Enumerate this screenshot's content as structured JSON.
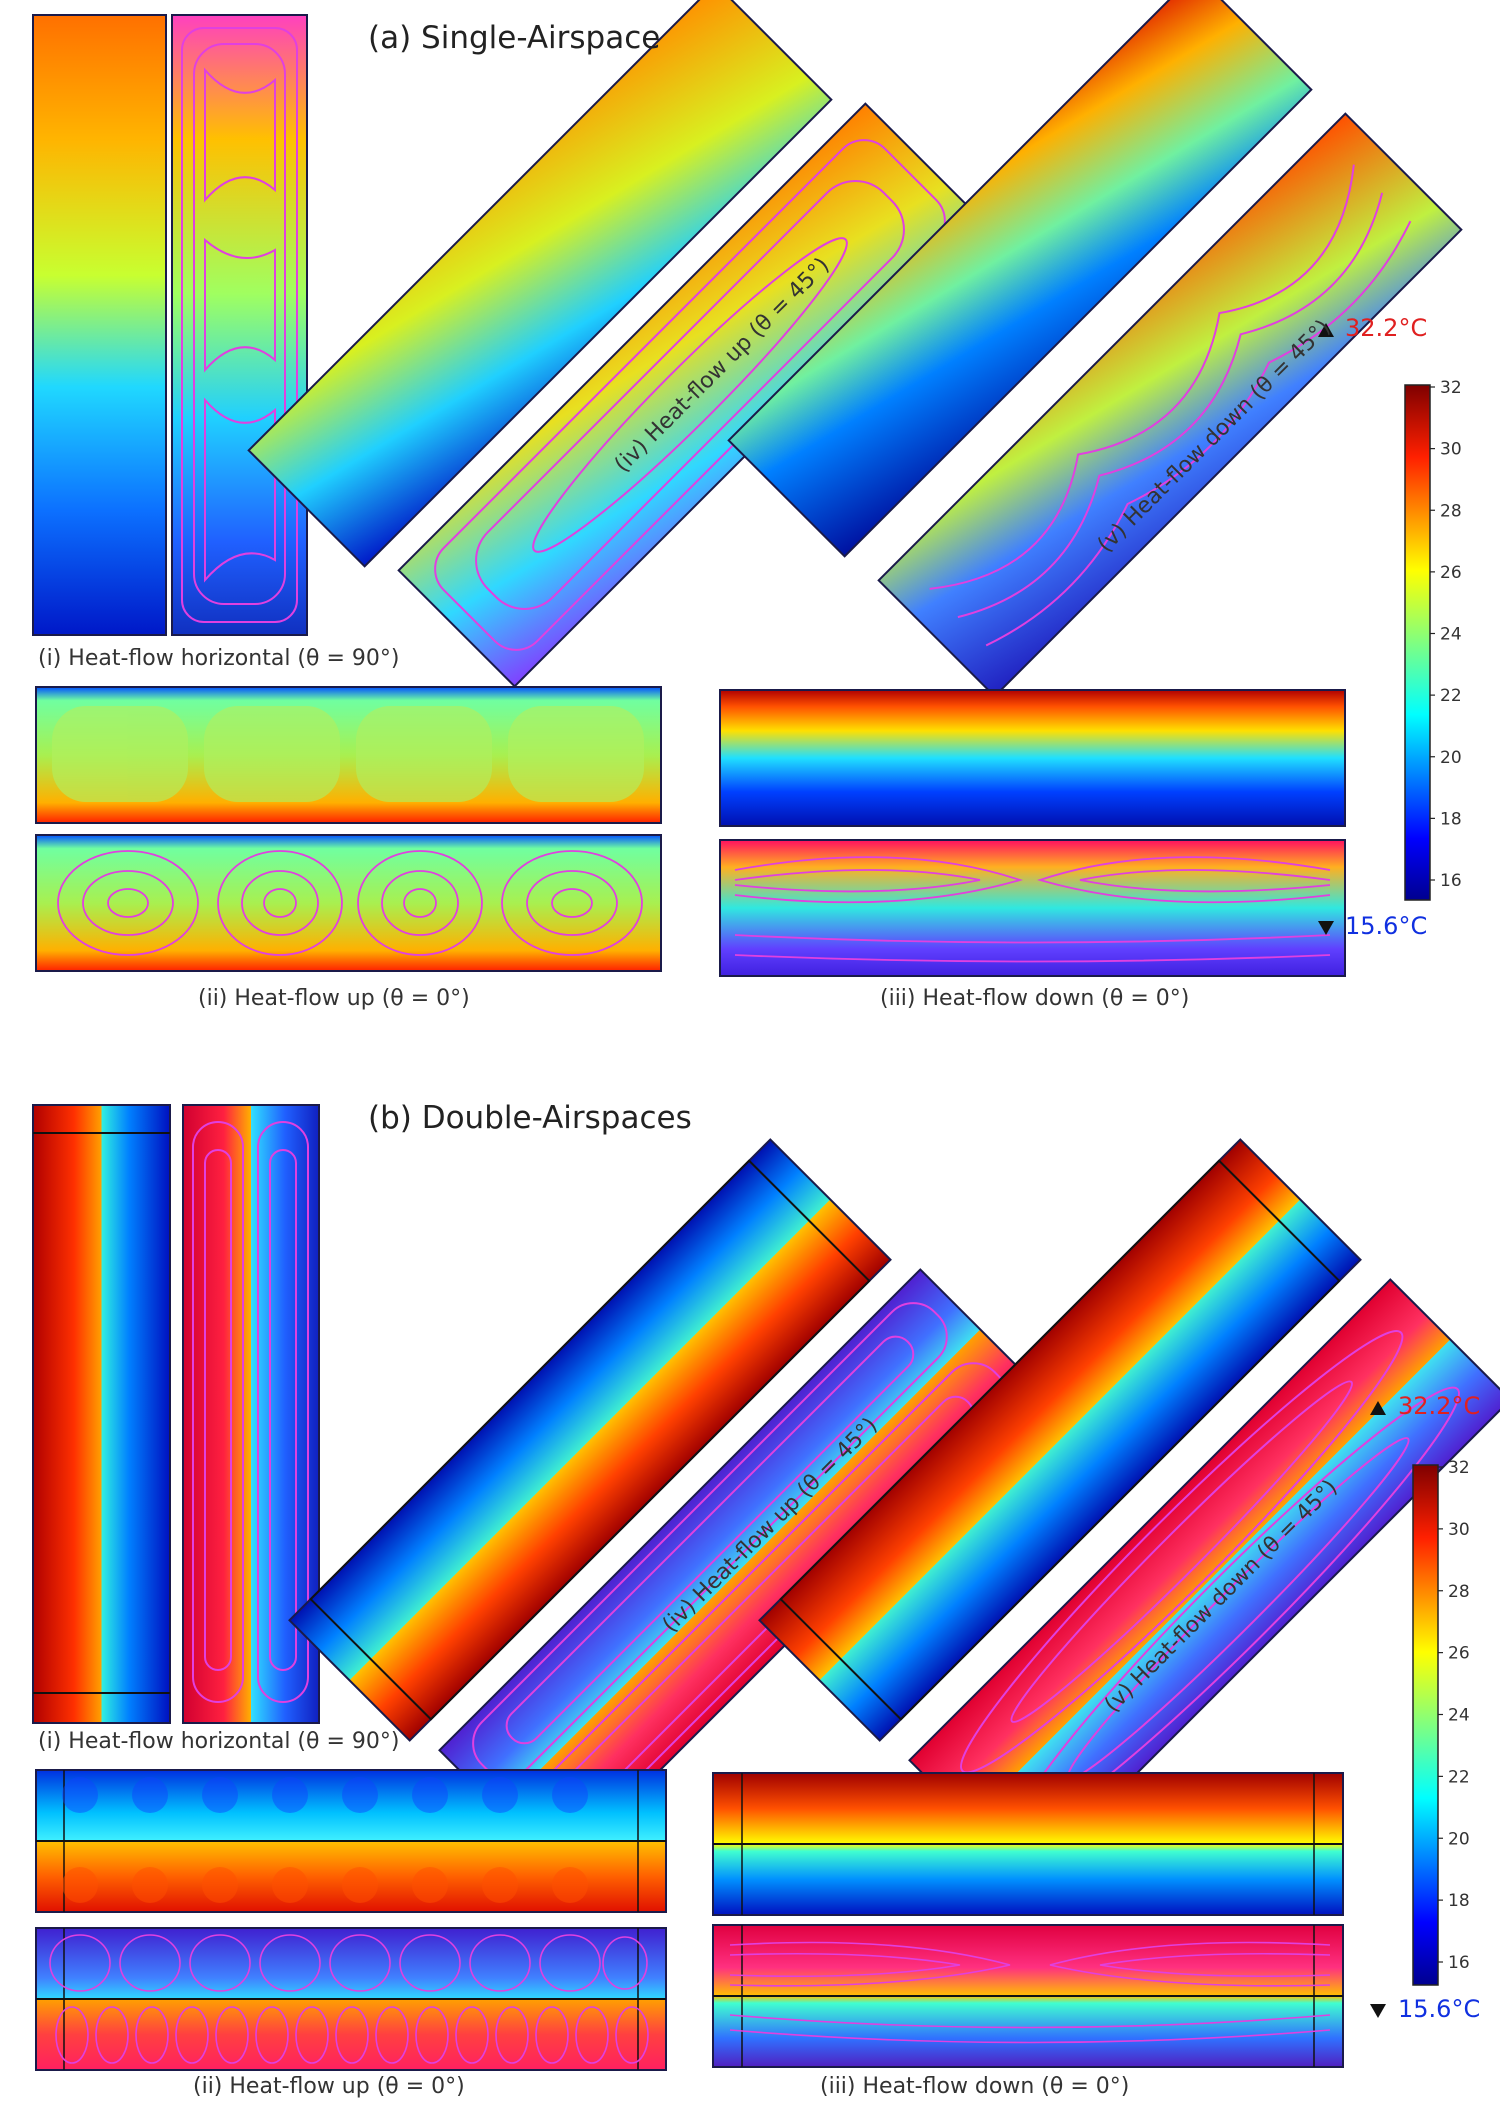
{
  "sections": [
    {
      "title": "(a) Single-Airspace",
      "captions": {
        "i": "(i) Heat-flow horizontal (θ = 90°)",
        "ii": "(ii) Heat-flow up (θ = 0°)",
        "iii": "(iii) Heat-flow down (θ = 0°)",
        "iv": "(iv) Heat-flow up (θ = 45°)",
        "v": "(v) Heat-flow down (θ = 45°)"
      },
      "temp_max": "32.2°C",
      "temp_min": "15.6°C"
    },
    {
      "title": "(b) Double-Airspaces",
      "captions": {
        "i": "(i) Heat-flow horizontal (θ = 90°)",
        "ii": "(ii) Heat-flow up (θ = 0°)",
        "iii": "(iii) Heat-flow down (θ = 0°)",
        "iv": "(iv) Heat-flow up (θ = 45°)",
        "v": "(v) Heat-flow down (θ = 45°)"
      },
      "temp_max": "32.2°C",
      "temp_min": "15.6°C"
    }
  ],
  "colorbar": {
    "ticks": [
      "32",
      "30",
      "28",
      "26",
      "24",
      "22",
      "20",
      "18",
      "16"
    ],
    "colors": [
      "#7f0000",
      "#ff0000",
      "#ff8000",
      "#ffff00",
      "#80ff80",
      "#00ffff",
      "#0080ff",
      "#0000ff",
      "#00008f"
    ]
  },
  "colors": {
    "streamline": "#e040e0",
    "max_label": "#e02020",
    "min_label": "#1030e0"
  }
}
